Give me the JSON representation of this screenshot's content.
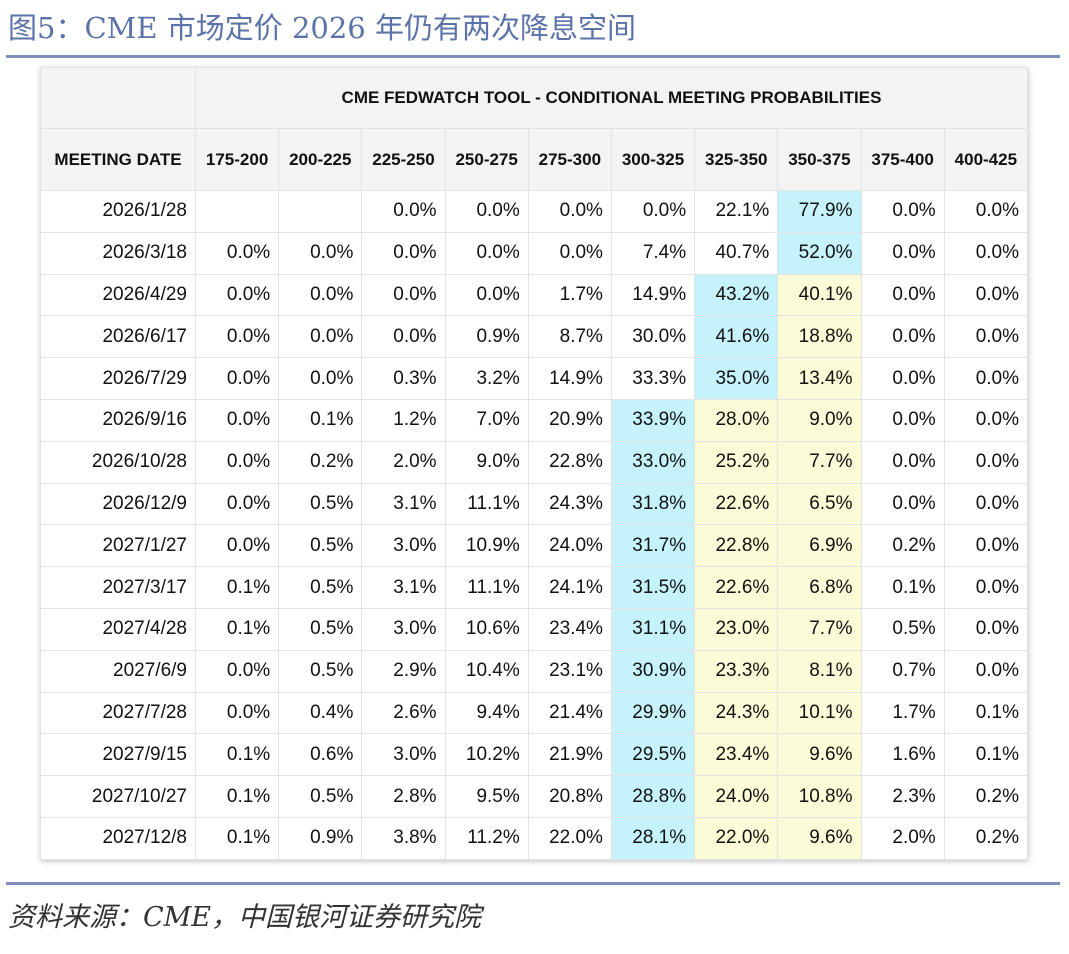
{
  "figure_title": "图5：CME 市场定价 2026 年仍有两次降息空间",
  "table": {
    "title": "CME FEDWATCH TOOL - CONDITIONAL MEETING PROBABILITIES",
    "date_header": "MEETING DATE",
    "columns": [
      "175-200",
      "200-225",
      "225-250",
      "250-275",
      "275-300",
      "300-325",
      "325-350",
      "350-375",
      "375-400",
      "400-425"
    ],
    "highlight_colors": {
      "cyan": "#c6f3fb",
      "yellow": "#fbfbd7"
    },
    "rows": [
      {
        "date": "2026/1/28",
        "values": [
          "",
          "",
          "0.0%",
          "0.0%",
          "0.0%",
          "0.0%",
          "22.1%",
          "77.9%",
          "0.0%",
          "0.0%"
        ],
        "hl": [
          "",
          "",
          "",
          "",
          "",
          "",
          "",
          "c",
          "",
          ""
        ]
      },
      {
        "date": "2026/3/18",
        "values": [
          "0.0%",
          "0.0%",
          "0.0%",
          "0.0%",
          "0.0%",
          "7.4%",
          "40.7%",
          "52.0%",
          "0.0%",
          "0.0%"
        ],
        "hl": [
          "",
          "",
          "",
          "",
          "",
          "",
          "",
          "c",
          "",
          ""
        ]
      },
      {
        "date": "2026/4/29",
        "values": [
          "0.0%",
          "0.0%",
          "0.0%",
          "0.0%",
          "1.7%",
          "14.9%",
          "43.2%",
          "40.1%",
          "0.0%",
          "0.0%"
        ],
        "hl": [
          "",
          "",
          "",
          "",
          "",
          "",
          "c",
          "y",
          "",
          ""
        ]
      },
      {
        "date": "2026/6/17",
        "values": [
          "0.0%",
          "0.0%",
          "0.0%",
          "0.9%",
          "8.7%",
          "30.0%",
          "41.6%",
          "18.8%",
          "0.0%",
          "0.0%"
        ],
        "hl": [
          "",
          "",
          "",
          "",
          "",
          "",
          "c",
          "y",
          "",
          ""
        ]
      },
      {
        "date": "2026/7/29",
        "values": [
          "0.0%",
          "0.0%",
          "0.3%",
          "3.2%",
          "14.9%",
          "33.3%",
          "35.0%",
          "13.4%",
          "0.0%",
          "0.0%"
        ],
        "hl": [
          "",
          "",
          "",
          "",
          "",
          "",
          "c",
          "y",
          "",
          ""
        ]
      },
      {
        "date": "2026/9/16",
        "values": [
          "0.0%",
          "0.1%",
          "1.2%",
          "7.0%",
          "20.9%",
          "33.9%",
          "28.0%",
          "9.0%",
          "0.0%",
          "0.0%"
        ],
        "hl": [
          "",
          "",
          "",
          "",
          "",
          "c",
          "y",
          "y",
          "",
          ""
        ]
      },
      {
        "date": "2026/10/28",
        "values": [
          "0.0%",
          "0.2%",
          "2.0%",
          "9.0%",
          "22.8%",
          "33.0%",
          "25.2%",
          "7.7%",
          "0.0%",
          "0.0%"
        ],
        "hl": [
          "",
          "",
          "",
          "",
          "",
          "c",
          "y",
          "y",
          "",
          ""
        ]
      },
      {
        "date": "2026/12/9",
        "values": [
          "0.0%",
          "0.5%",
          "3.1%",
          "11.1%",
          "24.3%",
          "31.8%",
          "22.6%",
          "6.5%",
          "0.0%",
          "0.0%"
        ],
        "hl": [
          "",
          "",
          "",
          "",
          "",
          "c",
          "y",
          "y",
          "",
          ""
        ]
      },
      {
        "date": "2027/1/27",
        "values": [
          "0.0%",
          "0.5%",
          "3.0%",
          "10.9%",
          "24.0%",
          "31.7%",
          "22.8%",
          "6.9%",
          "0.2%",
          "0.0%"
        ],
        "hl": [
          "",
          "",
          "",
          "",
          "",
          "c",
          "y",
          "y",
          "",
          ""
        ]
      },
      {
        "date": "2027/3/17",
        "values": [
          "0.1%",
          "0.5%",
          "3.1%",
          "11.1%",
          "24.1%",
          "31.5%",
          "22.6%",
          "6.8%",
          "0.1%",
          "0.0%"
        ],
        "hl": [
          "",
          "",
          "",
          "",
          "",
          "c",
          "y",
          "y",
          "",
          ""
        ]
      },
      {
        "date": "2027/4/28",
        "values": [
          "0.1%",
          "0.5%",
          "3.0%",
          "10.6%",
          "23.4%",
          "31.1%",
          "23.0%",
          "7.7%",
          "0.5%",
          "0.0%"
        ],
        "hl": [
          "",
          "",
          "",
          "",
          "",
          "c",
          "y",
          "y",
          "",
          ""
        ]
      },
      {
        "date": "2027/6/9",
        "values": [
          "0.0%",
          "0.5%",
          "2.9%",
          "10.4%",
          "23.1%",
          "30.9%",
          "23.3%",
          "8.1%",
          "0.7%",
          "0.0%"
        ],
        "hl": [
          "",
          "",
          "",
          "",
          "",
          "c",
          "y",
          "y",
          "",
          ""
        ]
      },
      {
        "date": "2027/7/28",
        "values": [
          "0.0%",
          "0.4%",
          "2.6%",
          "9.4%",
          "21.4%",
          "29.9%",
          "24.3%",
          "10.1%",
          "1.7%",
          "0.1%"
        ],
        "hl": [
          "",
          "",
          "",
          "",
          "",
          "c",
          "y",
          "y",
          "",
          ""
        ]
      },
      {
        "date": "2027/9/15",
        "values": [
          "0.1%",
          "0.6%",
          "3.0%",
          "10.2%",
          "21.9%",
          "29.5%",
          "23.4%",
          "9.6%",
          "1.6%",
          "0.1%"
        ],
        "hl": [
          "",
          "",
          "",
          "",
          "",
          "c",
          "y",
          "y",
          "",
          ""
        ]
      },
      {
        "date": "2027/10/27",
        "values": [
          "0.1%",
          "0.5%",
          "2.8%",
          "9.5%",
          "20.8%",
          "28.8%",
          "24.0%",
          "10.8%",
          "2.3%",
          "0.2%"
        ],
        "hl": [
          "",
          "",
          "",
          "",
          "",
          "c",
          "y",
          "y",
          "",
          ""
        ]
      },
      {
        "date": "2027/12/8",
        "values": [
          "0.1%",
          "0.9%",
          "3.8%",
          "11.2%",
          "22.0%",
          "28.1%",
          "22.0%",
          "9.6%",
          "2.0%",
          "0.2%"
        ],
        "hl": [
          "",
          "",
          "",
          "",
          "",
          "c",
          "y",
          "y",
          "",
          ""
        ]
      }
    ]
  },
  "source_note": "资料来源：CME，中国银河证券研究院"
}
